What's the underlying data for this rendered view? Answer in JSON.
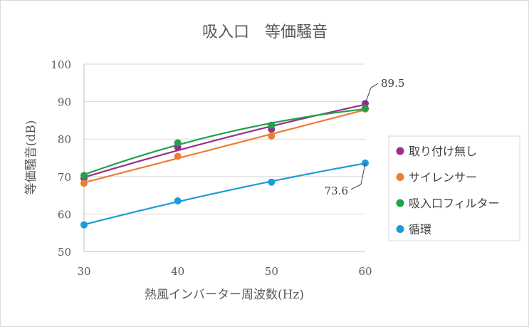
{
  "chart_data": {
    "type": "scatter",
    "title": "吸入口　等価騒音",
    "xlabel": "熱風インバーター周波数(Hz)",
    "ylabel": "等価騒音(dB)",
    "x": [
      30,
      40,
      50,
      60
    ],
    "xlim": [
      30,
      60
    ],
    "ylim": [
      50,
      100
    ],
    "xticks": [
      30,
      40,
      50,
      60
    ],
    "yticks": [
      50,
      60,
      70,
      80,
      90,
      100
    ],
    "grid": "horizontal",
    "legend_position": "right",
    "trendlines": "polynomial",
    "series": [
      {
        "name": "取り付け無し",
        "color": "#9B2D8E",
        "values": [
          69.5,
          77.8,
          82.6,
          89.5
        ]
      },
      {
        "name": "サイレンサー",
        "color": "#ED7D31",
        "values": [
          68.2,
          75.4,
          80.8,
          88.0
        ]
      },
      {
        "name": "吸入口フィルター",
        "color": "#1FA24A",
        "values": [
          70.3,
          79.0,
          83.7,
          88.2
        ]
      },
      {
        "name": "循環",
        "color": "#1E9BD7",
        "values": [
          57.1,
          63.5,
          68.5,
          73.6
        ]
      }
    ],
    "annotations": [
      {
        "text": "89.5",
        "series": 0,
        "x": 60
      },
      {
        "text": "73.6",
        "series": 3,
        "x": 60
      }
    ]
  }
}
